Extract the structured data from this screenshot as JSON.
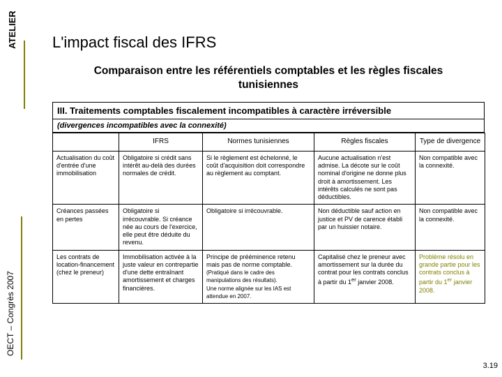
{
  "sidelabel_top": "ATELIER",
  "sidelabel_bottom": "OECT – Congrès 2007",
  "title": "L'impact fiscal des IFRS",
  "subtitle": "Comparaison entre les référentiels comptables et les règles fiscales tunisiennes",
  "section_title": "III. Traitements comptables fiscalement incompatibles à caractère irréversible",
  "section_sub": "(divergences incompatibles avec la connexité)",
  "headers": [
    "",
    "IFRS",
    "Normes tunisiennes",
    "Règles fiscales",
    "Type de divergence"
  ],
  "rows": [
    {
      "c0": "Actualisation du coût d'entrée d'une immobilisation",
      "c1": "Obligatoire si crédit sans intérêt au-delà des durées normales de crédit.",
      "c2": "Si le règlement est échelonné, le coût d'acquisition doit correspondre au règlement au comptant.",
      "c3": "Aucune actualisation n'est admise. La décote sur le coût nominal d'origine ne donne plus droit à amortissement. Les intérêts calculés ne sont pas déductibles.",
      "c4": "Non compatible avec la connexité.",
      "c4_olive": false
    },
    {
      "c0": "Créances passées en pertes",
      "c1": "Obligatoire si irrécouvrable. Si créance née au cours de l'exercice, elle peut être déduite du revenu.",
      "c2": "Obligatoire si irrécouvrable.",
      "c3": "Non déductible sauf action en justice et PV de carence établi par un huissier notaire.",
      "c4": "Non compatible avec la connexité.",
      "c4_olive": false
    },
    {
      "c0": "Les contrats de location-financement (chez le preneur)",
      "c1": "Immobilisation activée à la juste valeur en contrepartie d'une dette entraînant amortissement et charges financières.",
      "c2_a": "Principe de prééminence retenu mais pas de norme comptable.",
      "c2_b": "(Pratiqué dans le cadre des manipulations des résultats).",
      "c2_c": "Une norme alignée sur les IAS est attendue en 2007.",
      "c3_a": "Capitalisé chez le preneur avec amortissement sur la durée du contrat pour les contrats conclus à partir du 1",
      "c3_b": " janvier 2008.",
      "c4_a": "Problème résolu en grande partie pour les contrats conclus à partir du 1",
      "c4_b": " janvier 2008.",
      "c4_olive": true,
      "sup": "er"
    }
  ],
  "pagenum": "3.19",
  "colors": {
    "accent": "#808000"
  }
}
